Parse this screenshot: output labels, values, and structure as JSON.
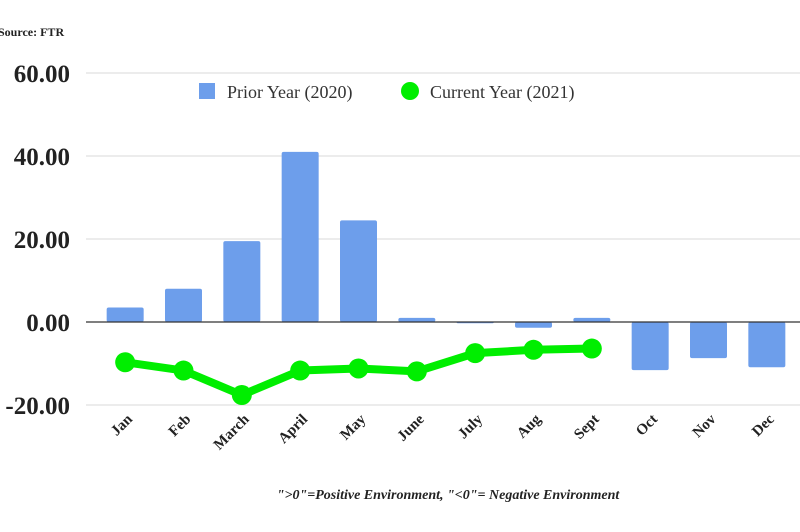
{
  "source": "Source: FTR",
  "note": "\">0\"=Positive Environment, \"<0\"= Negative Environment",
  "colors": {
    "prior": "#6d9eeb",
    "current": "#00ee00",
    "grid": "#d9d9d9",
    "axis": "#333333"
  },
  "chart_data": {
    "type": "bar",
    "title": "",
    "xlabel": "",
    "ylabel": "",
    "ylim": [
      -20,
      60
    ],
    "yticks": [
      "60.00",
      "40.00",
      "20.00",
      "0.00",
      "-20.00"
    ],
    "ytick_values": [
      60,
      40,
      20,
      0,
      -20
    ],
    "grid": true,
    "legend_position": "top-center",
    "categories": [
      "Jan",
      "Feb",
      "March",
      "April",
      "May",
      "June",
      "July",
      "Aug",
      "Sept",
      "Oct",
      "Nov",
      "Dec"
    ],
    "series": [
      {
        "name": "Prior Year (2020)",
        "type": "bar",
        "values": [
          3.5,
          8.0,
          19.5,
          41.0,
          24.5,
          1.0,
          -0.3,
          -1.4,
          1.0,
          -11.6,
          -8.7,
          -10.9
        ]
      },
      {
        "name": "Current Year (2021)",
        "type": "line",
        "values": [
          -9.7,
          -11.7,
          -17.6,
          -11.7,
          -11.2,
          -11.9,
          -7.5,
          -6.7,
          -6.4,
          null,
          null,
          null
        ]
      }
    ]
  }
}
